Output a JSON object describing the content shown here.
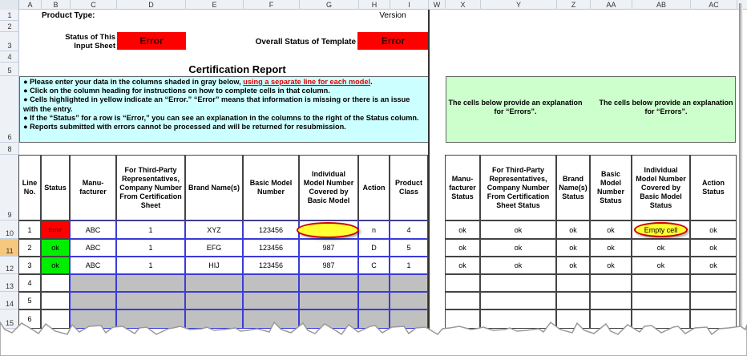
{
  "column_headers": [
    "A",
    "B",
    "C",
    "D",
    "E",
    "F",
    "G",
    "H",
    "I",
    "W",
    "X",
    "Y",
    "Z",
    "AA",
    "AB",
    "AC"
  ],
  "row_headers": [
    "1",
    "2",
    "3",
    "4",
    "5",
    "6",
    "8",
    "9",
    "10",
    "11",
    "12",
    "13",
    "14",
    "15"
  ],
  "product_type_label": "Product Type:",
  "version_label": "Version",
  "status_input_label": "Status of This Input Sheet",
  "status_input_value": "Error",
  "overall_status_label": "Overall Status of Template",
  "overall_status_value": "Error",
  "report_title": "Certification Report",
  "instructions": [
    {
      "text": "● Please enter your data in the columns shaded in gray below, ",
      "link": "using a separate line for each model",
      "end": "."
    },
    {
      "text": "● Click on the column heading for instructions on how to complete cells in that column."
    },
    {
      "text": "● Cells highlighted in yellow indicate an “Error.”  “Error” means that information is missing or there is an issue with the entry."
    },
    {
      "text": "● If the “Status” for a row is “Error,” you can see an explanation in the columns to the right of the Status column."
    },
    {
      "text": "● Reports submitted with errors cannot be processed and will be returned for resubmission."
    }
  ],
  "explanation_notes": [
    "The cells below provide an explanation for “Errors”.",
    "The cells below provide an explanation for “Errors”."
  ],
  "table": {
    "headers": [
      "Line No.",
      "Status",
      "Manu-facturer",
      "For Third-Party Representatives, Company Number From Certification Sheet",
      "Brand Name(s)",
      "Basic Model Number",
      "Individual Model Number Covered by Basic Model",
      "Action",
      "Product Class"
    ],
    "rows": [
      [
        "1",
        "Error",
        "ABC",
        "1",
        "XYZ",
        "123456",
        null,
        "n",
        "4"
      ],
      [
        "2",
        "ok",
        "ABC",
        "1",
        "EFG",
        "123456",
        "987",
        "D",
        "5"
      ],
      [
        "3",
        "ok",
        "ABC",
        "1",
        "HIJ",
        "123456",
        "987",
        "C",
        "1"
      ],
      [
        "4",
        null,
        null,
        null,
        null,
        null,
        null,
        null,
        null
      ],
      [
        "5",
        null,
        null,
        null,
        null,
        null,
        null,
        null,
        null
      ],
      [
        "6",
        null,
        null,
        null,
        null,
        null,
        null,
        null,
        null
      ]
    ],
    "status_headers": [
      "Manu-facturer Status",
      "For Third-Party Representatives, Company Number From Certification Sheet Status",
      "Brand Name(s) Status",
      "Basic Model Number Status",
      "Individual Model Number Covered by Basic Model Status",
      "Action Status"
    ],
    "status_rows": [
      [
        "ok",
        "ok",
        "ok",
        "ok",
        "Empty cell",
        "ok"
      ],
      [
        "ok",
        "ok",
        "ok",
        "ok",
        "ok",
        "ok"
      ],
      [
        "ok",
        "ok",
        "ok",
        "ok",
        "ok",
        "ok"
      ]
    ]
  }
}
